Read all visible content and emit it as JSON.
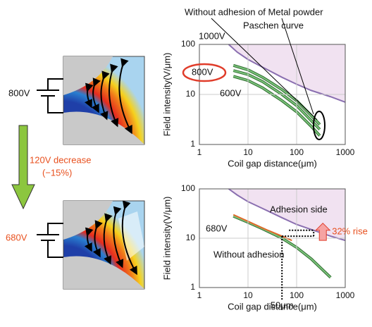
{
  "diagram": {
    "top_voltage": "800V",
    "decrease": "120V decrease",
    "decrease_pct": "(−15%)",
    "bottom_voltage": "680V"
  },
  "chart_data": [
    {
      "type": "line",
      "log_x": true,
      "log_y": true,
      "grid": true,
      "xlabel": "Coil gap distance(μm)",
      "ylabel": "Field intensity(V/μm)",
      "xlim": [
        1,
        1000
      ],
      "ylim": [
        1,
        100
      ],
      "xticks": [
        1,
        10,
        100,
        1000
      ],
      "yticks": [
        1,
        10,
        100
      ],
      "annotations": [
        "Without adhesion of Metal powder"
      ],
      "series": [
        {
          "name": "Paschen curve",
          "color": "#8a6fb0",
          "fill_above": true,
          "x": [
            4,
            6,
            10,
            20,
            50,
            100,
            200,
            500,
            1000
          ],
          "values": [
            100,
            70,
            50,
            35,
            22,
            16,
            12,
            9,
            7
          ]
        },
        {
          "name": "1000V",
          "color": "#7cc47c",
          "x": [
            5,
            10,
            20,
            50,
            100,
            200,
            300
          ],
          "values": [
            38,
            31,
            22,
            12.5,
            7.5,
            3.8,
            2.5
          ]
        },
        {
          "name": "800V",
          "color": "#7cc47c",
          "x": [
            5,
            10,
            20,
            50,
            100,
            200,
            300
          ],
          "values": [
            30,
            25,
            18,
            10,
            6,
            3,
            2
          ]
        },
        {
          "name": "600V",
          "color": "#7cc47c",
          "x": [
            5,
            10,
            20,
            50,
            100,
            200,
            300
          ],
          "values": [
            23,
            19,
            13.5,
            7.5,
            4.5,
            2.3,
            1.5
          ]
        }
      ]
    },
    {
      "type": "line",
      "log_x": true,
      "log_y": true,
      "grid": true,
      "xlabel": "Coil gap distance(μm)",
      "ylabel": "Field intensity(V/μm)",
      "xlim": [
        1,
        1000
      ],
      "ylim": [
        1,
        100
      ],
      "xticks": [
        1,
        10,
        100,
        1000
      ],
      "yticks": [
        1,
        10,
        100
      ],
      "annotations": [
        "680V"
      ],
      "marker": {
        "x": 50,
        "label": "50μm"
      },
      "rise": {
        "levels": [
          11,
          14.5
        ],
        "label": "32% rise"
      },
      "series": [
        {
          "name": "Paschen curve",
          "color": "#8a6fb0",
          "fill_above": true,
          "x": [
            4,
            6,
            10,
            20,
            50,
            100,
            200,
            500,
            1000
          ],
          "values": [
            100,
            75,
            55,
            40,
            26,
            19,
            15,
            11,
            9
          ]
        },
        {
          "name": "Without adhesion",
          "color": "#7cc47c",
          "x": [
            5,
            10,
            20,
            50,
            100,
            200,
            500
          ],
          "values": [
            28,
            21,
            15.5,
            10,
            6.5,
            3.8,
            1.6
          ]
        },
        {
          "name": "Adhesion side",
          "color": "#e06a2a",
          "x": [
            5,
            10,
            20,
            50,
            80
          ],
          "values": [
            30,
            22,
            16,
            11,
            9
          ]
        }
      ]
    }
  ]
}
